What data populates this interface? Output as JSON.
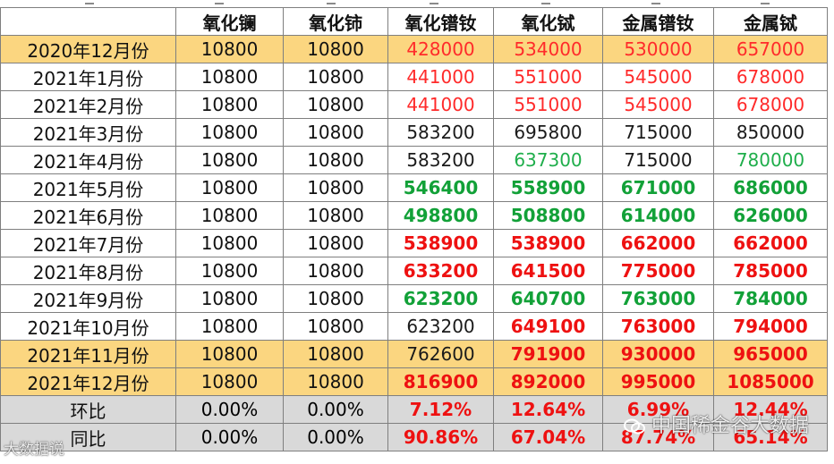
{
  "table": {
    "headers": [
      "",
      "氧化镧",
      "氧化铈",
      "氧化镨钕",
      "氧化铽",
      "金属镨钕",
      "金属铽"
    ],
    "rows": [
      {
        "label": "2020年12月份",
        "values": [
          "10800",
          "10800",
          "428000",
          "534000",
          "530000",
          "657000"
        ],
        "styles": [
          "num",
          "num",
          "c-red",
          "c-red",
          "c-red",
          "c-red"
        ],
        "highlight": true
      },
      {
        "label": "2021年1月份",
        "values": [
          "10800",
          "10800",
          "441000",
          "551000",
          "545000",
          "678000"
        ],
        "styles": [
          "num",
          "num",
          "c-red",
          "c-red",
          "c-red",
          "c-red"
        ]
      },
      {
        "label": "2021年2月份",
        "values": [
          "10800",
          "10800",
          "441000",
          "551000",
          "545000",
          "678000"
        ],
        "styles": [
          "num",
          "num",
          "c-red",
          "c-red",
          "c-red",
          "c-red"
        ]
      },
      {
        "label": "2021年3月份",
        "values": [
          "10800",
          "10800",
          "583200",
          "695800",
          "715000",
          "850000"
        ],
        "styles": [
          "num",
          "num",
          "c-black",
          "c-black",
          "c-black",
          "c-black"
        ]
      },
      {
        "label": "2021年4月份",
        "values": [
          "10800",
          "10800",
          "583200",
          "637300",
          "715000",
          "780000"
        ],
        "styles": [
          "num",
          "num",
          "c-black",
          "c-green",
          "c-black",
          "c-green"
        ]
      },
      {
        "label": "2021年5月份",
        "values": [
          "10800",
          "10800",
          "546400",
          "558900",
          "671000",
          "686000"
        ],
        "styles": [
          "num",
          "num",
          "c-bgreen",
          "c-bgreen",
          "c-bgreen",
          "c-bgreen"
        ]
      },
      {
        "label": "2021年6月份",
        "values": [
          "10800",
          "10800",
          "498800",
          "508800",
          "614000",
          "626000"
        ],
        "styles": [
          "num",
          "num",
          "c-bgreen",
          "c-bgreen",
          "c-bgreen",
          "c-bgreen"
        ]
      },
      {
        "label": "2021年7月份",
        "values": [
          "10800",
          "10800",
          "538900",
          "538900",
          "662000",
          "662000"
        ],
        "styles": [
          "num",
          "num",
          "c-bred",
          "c-bred",
          "c-bred",
          "c-bred"
        ]
      },
      {
        "label": "2021年8月份",
        "values": [
          "10800",
          "10800",
          "633200",
          "641500",
          "775000",
          "785000"
        ],
        "styles": [
          "num",
          "num",
          "c-bred",
          "c-bred",
          "c-bred",
          "c-bred"
        ]
      },
      {
        "label": "2021年9月份",
        "values": [
          "10800",
          "10800",
          "623200",
          "640700",
          "763000",
          "784000"
        ],
        "styles": [
          "num",
          "num",
          "c-bgreen",
          "c-bgreen",
          "c-bgreen",
          "c-bgreen"
        ]
      },
      {
        "label": "2021年10月份",
        "values": [
          "10800",
          "10800",
          "623200",
          "649100",
          "763000",
          "794000"
        ],
        "styles": [
          "num",
          "num",
          "c-black",
          "c-bred",
          "c-bred",
          "c-bred"
        ]
      },
      {
        "label": "2021年11月份",
        "values": [
          "10800",
          "10800",
          "762600",
          "791900",
          "930000",
          "965000"
        ],
        "styles": [
          "num",
          "num",
          "c-black",
          "c-bred",
          "c-bred",
          "c-bred"
        ],
        "highlight": true
      },
      {
        "label": "2021年12月份",
        "values": [
          "10800",
          "10800",
          "816900",
          "892000",
          "995000",
          "1085000"
        ],
        "styles": [
          "num",
          "num",
          "c-bred",
          "c-bred",
          "c-bred",
          "c-bred"
        ],
        "highlight": true
      },
      {
        "label": "环比",
        "values": [
          "0.00%",
          "0.00%",
          "7.12%",
          "12.64%",
          "6.99%",
          "12.44%"
        ],
        "styles": [
          "mono",
          "mono",
          "c-bred mono",
          "c-bred mono",
          "c-bred mono",
          "c-bred mono"
        ],
        "summary": true
      },
      {
        "label": "同比",
        "values": [
          "0.00%",
          "0.00%",
          "90.86%",
          "67.04%",
          "87.74%",
          "65.14%"
        ],
        "styles": [
          "mono",
          "mono",
          "c-bred mono",
          "c-bred mono",
          "c-bred mono",
          "c-bred mono"
        ],
        "summary": true
      }
    ]
  },
  "watermarks": {
    "right": "中国稀金谷大数据",
    "left": "大数据说"
  },
  "colors": {
    "highlight_row": "#fbd680",
    "summary_row": "#d9d9d9",
    "red": "#ff2a2a",
    "bold_red": "#ee1111",
    "green": "#1fae4b",
    "bold_green": "#12a138"
  }
}
